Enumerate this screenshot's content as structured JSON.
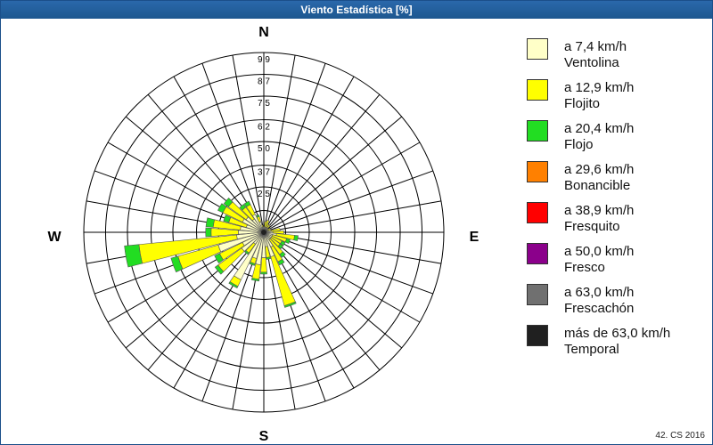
{
  "window": {
    "title": "Viento Estadística [%]"
  },
  "credit": "42. CS 2016",
  "colors": {
    "ventolina": "#ffffc8",
    "flojito": "#ffff00",
    "flojo": "#22dd22",
    "bonancible": "#ff8000",
    "fresquito": "#ff0000",
    "fresco": "#8b008b",
    "frescachon": "#707070",
    "temporal": "#202020"
  },
  "legend": [
    {
      "line1": "a 7,4 km/h",
      "line2": "Ventolina",
      "color": "#ffffc8"
    },
    {
      "line1": "a 12,9 km/h",
      "line2": "Flojito",
      "color": "#ffff00"
    },
    {
      "line1": "a 20,4 km/h",
      "line2": "Flojo",
      "color": "#22dd22"
    },
    {
      "line1": "a 29,6 km/h",
      "line2": "Bonancible",
      "color": "#ff8000"
    },
    {
      "line1": "a 38,9 km/h",
      "line2": "Fresquito",
      "color": "#ff0000"
    },
    {
      "line1": "a 50,0 km/h",
      "line2": "Fresco",
      "color": "#8b008b"
    },
    {
      "line1": "a 63,0 km/h",
      "line2": "Frescachón",
      "color": "#707070"
    },
    {
      "line1": "más de 63,0 km/h",
      "line2": "Temporal",
      "color": "#202020"
    }
  ],
  "chart_data": {
    "type": "windrose",
    "title": "Viento Estadística [%]",
    "compass": {
      "n": "N",
      "e": "E",
      "s": "S",
      "w": "W"
    },
    "radial_ticks": [
      {
        "value": 1.2,
        "label": ""
      },
      {
        "value": 2.5,
        "label": "2,5"
      },
      {
        "value": 3.7,
        "label": "3,7"
      },
      {
        "value": 5.0,
        "label": "5,0"
      },
      {
        "value": 6.2,
        "label": "6,2"
      },
      {
        "value": 7.5,
        "label": "7,5"
      },
      {
        "value": 8.7,
        "label": "8,7"
      },
      {
        "value": 9.9,
        "label": "9,9"
      }
    ],
    "rmax": 9.9,
    "bin_width_deg": 10,
    "series_names": [
      "Ventolina",
      "Flojito",
      "Flojo"
    ],
    "sectors": [
      {
        "dir": 0,
        "values": [
          0.2,
          0.1,
          0.0
        ]
      },
      {
        "dir": 10,
        "values": [
          0.3,
          0.3,
          0.0
        ]
      },
      {
        "dir": 20,
        "values": [
          0.3,
          0.4,
          0.0
        ]
      },
      {
        "dir": 30,
        "values": [
          0.3,
          0.2,
          0.0
        ]
      },
      {
        "dir": 40,
        "values": [
          0.3,
          0.2,
          0.0
        ]
      },
      {
        "dir": 50,
        "values": [
          0.2,
          0.1,
          0.0
        ]
      },
      {
        "dir": 60,
        "values": [
          0.2,
          0.2,
          0.0
        ]
      },
      {
        "dir": 70,
        "values": [
          0.2,
          0.2,
          0.0
        ]
      },
      {
        "dir": 80,
        "values": [
          0.4,
          0.5,
          0.0
        ]
      },
      {
        "dir": 90,
        "values": [
          0.5,
          0.6,
          0.0
        ]
      },
      {
        "dir": 100,
        "values": [
          0.7,
          1.0,
          0.2
        ]
      },
      {
        "dir": 110,
        "values": [
          0.5,
          0.8,
          0.2
        ]
      },
      {
        "dir": 120,
        "values": [
          0.5,
          0.6,
          0.2
        ]
      },
      {
        "dir": 130,
        "values": [
          0.5,
          0.6,
          0.2
        ]
      },
      {
        "dir": 140,
        "values": [
          0.5,
          1.0,
          0.2
        ]
      },
      {
        "dir": 150,
        "values": [
          0.9,
          0.9,
          0.2
        ]
      },
      {
        "dir": 160,
        "values": [
          1.4,
          2.8,
          0.1
        ]
      },
      {
        "dir": 170,
        "values": [
          0.8,
          0.6,
          0.1
        ]
      },
      {
        "dir": 180,
        "values": [
          1.4,
          0.8,
          0.1
        ]
      },
      {
        "dir": 190,
        "values": [
          1.8,
          0.8,
          0.1
        ]
      },
      {
        "dir": 200,
        "values": [
          1.5,
          0.3,
          0.1
        ]
      },
      {
        "dir": 210,
        "values": [
          2.9,
          0.4,
          0.1
        ]
      },
      {
        "dir": 220,
        "values": [
          0.8,
          0.6,
          0.1
        ]
      },
      {
        "dir": 230,
        "values": [
          1.5,
          1.6,
          0.2
        ]
      },
      {
        "dir": 240,
        "values": [
          1.3,
          1.4,
          0.3
        ]
      },
      {
        "dir": 250,
        "values": [
          2.6,
          2.3,
          0.4
        ]
      },
      {
        "dir": 260,
        "values": [
          1.5,
          5.4,
          0.8
        ]
      },
      {
        "dir": 270,
        "values": [
          1.4,
          1.5,
          0.3
        ]
      },
      {
        "dir": 280,
        "values": [
          1.3,
          1.5,
          0.4
        ]
      },
      {
        "dir": 290,
        "values": [
          1.0,
          1.0,
          0.3
        ]
      },
      {
        "dir": 300,
        "values": [
          1.3,
          1.2,
          0.3
        ]
      },
      {
        "dir": 310,
        "values": [
          1.2,
          1.2,
          0.3
        ]
      },
      {
        "dir": 320,
        "values": [
          0.9,
          0.8,
          0.2
        ]
      },
      {
        "dir": 330,
        "values": [
          1.1,
          0.6,
          0.2
        ]
      },
      {
        "dir": 340,
        "values": [
          0.6,
          0.3,
          0.1
        ]
      },
      {
        "dir": 350,
        "values": [
          0.3,
          0.1,
          0.0
        ]
      }
    ]
  }
}
